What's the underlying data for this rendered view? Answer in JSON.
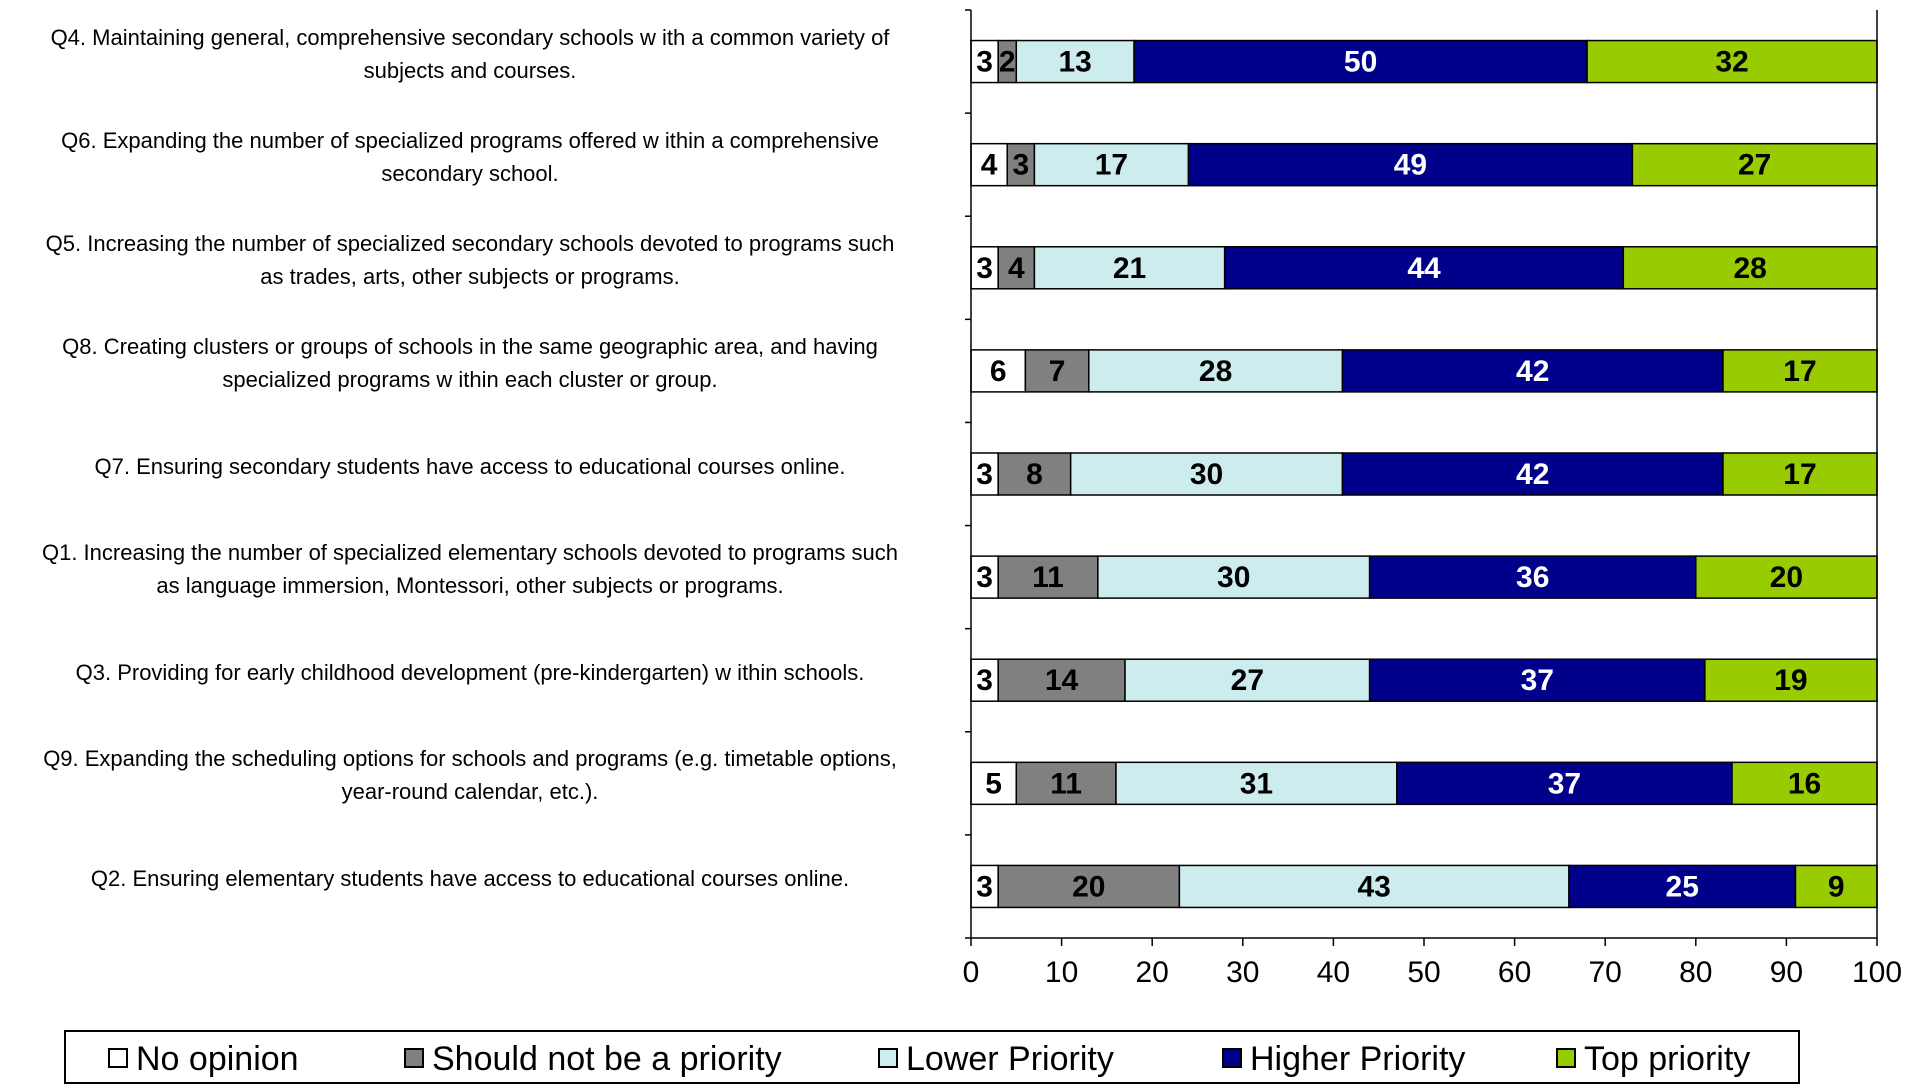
{
  "chart_data": {
    "type": "bar",
    "orientation": "horizontal",
    "stacked": true,
    "xlim": [
      0,
      100
    ],
    "xticks": [
      0,
      10,
      20,
      30,
      40,
      50,
      60,
      70,
      80,
      90,
      100
    ],
    "grid": false,
    "legend_position": "bottom",
    "categories": [
      [
        "Q4. Maintaining general, comprehensive secondary schools w ith a common variety of",
        "subjects and courses."
      ],
      [
        "Q6. Expanding the number of specialized programs offered w ithin a comprehensive",
        "secondary school."
      ],
      [
        "Q5. Increasing the number of specialized secondary schools devoted to programs such",
        "as trades, arts, other subjects or programs."
      ],
      [
        "Q8. Creating clusters or groups of schools in the same geographic area, and having",
        "specialized programs w ithin each cluster or group."
      ],
      [
        "Q7. Ensuring secondary students have access to educational courses online."
      ],
      [
        "Q1. Increasing the number of specialized elementary schools devoted to programs such",
        "as language immersion, Montessori, other subjects or programs."
      ],
      [
        "Q3. Providing for early childhood development (pre-kindergarten) w ithin schools."
      ],
      [
        "Q9. Expanding the scheduling options for schools and programs (e.g. timetable options,",
        "year-round calendar, etc.)."
      ],
      [
        "Q2. Ensuring elementary students have access to educational courses online."
      ]
    ],
    "series": [
      {
        "name": "No opinion",
        "color": "#ffffff",
        "label_color": "#000000",
        "values": [
          3,
          4,
          3,
          6,
          3,
          3,
          3,
          5,
          3
        ]
      },
      {
        "name": "Should not be a priority",
        "color": "#808080",
        "label_color": "#000000",
        "values": [
          2,
          3,
          4,
          7,
          8,
          11,
          14,
          11,
          20
        ]
      },
      {
        "name": "Lower Priority",
        "color": "#ccecee",
        "label_color": "#000000",
        "values": [
          13,
          17,
          21,
          28,
          30,
          30,
          27,
          31,
          43
        ]
      },
      {
        "name": "Higher Priority",
        "color": "#00008b",
        "label_color": "#ffffff",
        "values": [
          50,
          49,
          44,
          42,
          42,
          36,
          37,
          37,
          25
        ]
      },
      {
        "name": "Top priority",
        "color": "#99cc00",
        "label_color": "#000000",
        "values": [
          32,
          27,
          28,
          17,
          17,
          20,
          19,
          16,
          9
        ]
      }
    ]
  }
}
